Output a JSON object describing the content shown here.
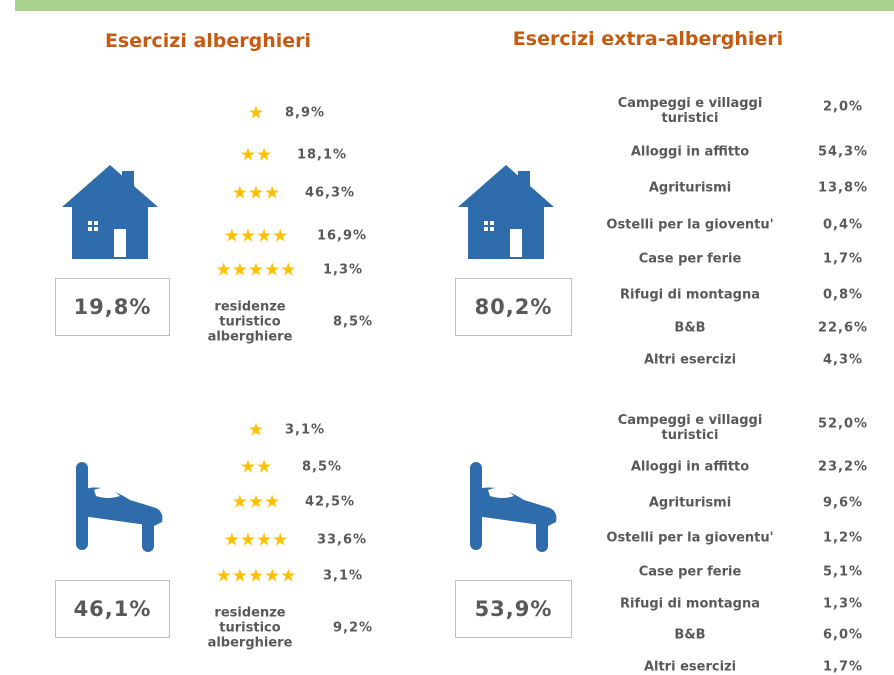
{
  "left": {
    "title": "Esercizi alberghieri",
    "sections": [
      {
        "total": "19,8%",
        "rows": [
          {
            "label": "★",
            "value": "8,9%"
          },
          {
            "label": "★★",
            "value": "18,1%"
          },
          {
            "label": "★★★",
            "value": "46,3%"
          },
          {
            "label": "★★★★",
            "value": "16,9%"
          },
          {
            "label": "★★★★★",
            "value": "1,3%"
          },
          {
            "label": "residenze turistico alberghiere",
            "value": "8,5%"
          }
        ]
      },
      {
        "total": "46,1%",
        "rows": [
          {
            "label": "★",
            "value": "3,1%"
          },
          {
            "label": "★★",
            "value": "8,5%"
          },
          {
            "label": "★★★",
            "value": "42,5%"
          },
          {
            "label": "★★★★",
            "value": "33,6%"
          },
          {
            "label": "★★★★★",
            "value": "3,1%"
          },
          {
            "label": "residenze turistico alberghiere",
            "value": "9,2%"
          }
        ]
      }
    ]
  },
  "right": {
    "title": "Esercizi extra-alberghieri",
    "sections": [
      {
        "total": "80,2%",
        "rows": [
          {
            "label": "Campeggi e villaggi turistici",
            "value": "2,0%"
          },
          {
            "label": "Alloggi in affitto",
            "value": "54,3%"
          },
          {
            "label": "Agriturismi",
            "value": "13,8%"
          },
          {
            "label": "Ostelli per la gioventu'",
            "value": "0,4%"
          },
          {
            "label": "Case per ferie",
            "value": "1,7%"
          },
          {
            "label": "Rifugi di montagna",
            "value": "0,8%"
          },
          {
            "label": "B&B",
            "value": "22,6%"
          },
          {
            "label": "Altri esercizi",
            "value": "4,3%"
          }
        ]
      },
      {
        "total": "53,9%",
        "rows": [
          {
            "label": "Campeggi e villaggi turistici",
            "value": "52,0%"
          },
          {
            "label": "Alloggi in affitto",
            "value": "23,2%"
          },
          {
            "label": "Agriturismi",
            "value": "9,6%"
          },
          {
            "label": "Ostelli per la gioventu'",
            "value": "1,2%"
          },
          {
            "label": "Case per ferie",
            "value": "5,1%"
          },
          {
            "label": "Rifugi di montagna",
            "value": "1,3%"
          },
          {
            "label": "B&B",
            "value": "6,0%"
          },
          {
            "label": "Altri esercizi",
            "value": "1,7%"
          }
        ]
      }
    ]
  }
}
